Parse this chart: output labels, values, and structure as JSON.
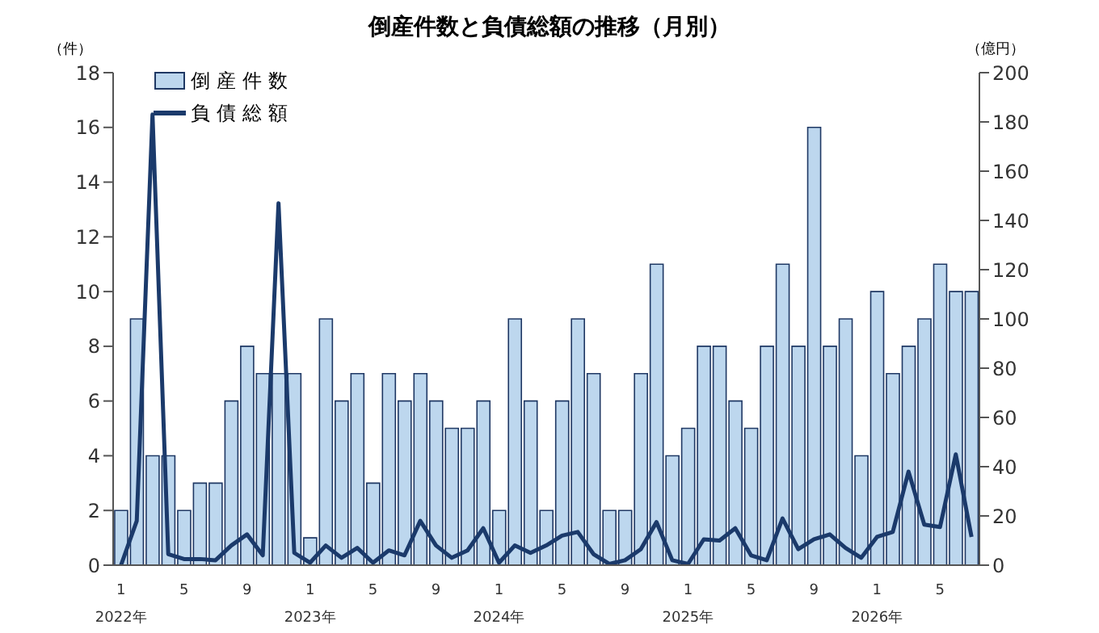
{
  "chart_data": {
    "type": "bar",
    "title": "倒産件数と負債総額の推移（月別）",
    "ylabel": "（件）",
    "y2label": "（億円）",
    "categories": [
      "1\n2022年",
      null,
      null,
      null,
      "5",
      null,
      null,
      null,
      "9",
      null,
      null,
      null,
      "1\n2023年",
      null,
      null,
      null,
      "5",
      null,
      null,
      null,
      "9",
      null,
      null,
      null,
      "1\n2024年",
      null,
      null,
      null,
      "5",
      null,
      null,
      null,
      "9",
      null,
      null,
      null,
      "1\n2025年",
      null,
      null,
      null,
      "5",
      null,
      null,
      null,
      "9",
      null,
      null,
      null,
      "1\n2026年",
      null,
      null,
      null,
      "5",
      null,
      null
    ],
    "series": [
      {
        "name": "倒産件数",
        "color": "#bdd7ee",
        "values": [
          2,
          9,
          4,
          4,
          2,
          3,
          3,
          6,
          8,
          7,
          7,
          7,
          1,
          9,
          6,
          7,
          3,
          7,
          6,
          7,
          6,
          5,
          5,
          6,
          2,
          9,
          6,
          2,
          6,
          9,
          7,
          2,
          2,
          7,
          11,
          4,
          5,
          8,
          8,
          6,
          5,
          8,
          11,
          8,
          16,
          8,
          9,
          4,
          10,
          7,
          8,
          9,
          11,
          10,
          10
        ]
      },
      {
        "name": "負債総額",
        "type": "line",
        "axis": "y2",
        "color": "#1b3a6b",
        "values": [
          0,
          18,
          183,
          4.5,
          2.5,
          2.5,
          2,
          8,
          12.5,
          4,
          147,
          5,
          1,
          8,
          3,
          7,
          1,
          6,
          4,
          18,
          8,
          3,
          6,
          15,
          1,
          8,
          5,
          8,
          12,
          13.5,
          4.5,
          0.5,
          2,
          6.5,
          17.5,
          2,
          0.5,
          10.5,
          10,
          15,
          4,
          2,
          19,
          6.5,
          10.5,
          12.5,
          7,
          3,
          11.5,
          13.5,
          38,
          16.5,
          15.5,
          45,
          11.5
        ]
      }
    ],
    "ylim": [
      0,
      18
    ],
    "yticks": [
      0,
      2,
      4,
      6,
      8,
      10,
      12,
      14,
      16,
      18
    ],
    "y2lim": [
      0,
      200
    ],
    "y2ticks": [
      0,
      20,
      40,
      60,
      80,
      100,
      120,
      140,
      160,
      180,
      200
    ],
    "legend": "top left",
    "marker": "none"
  }
}
